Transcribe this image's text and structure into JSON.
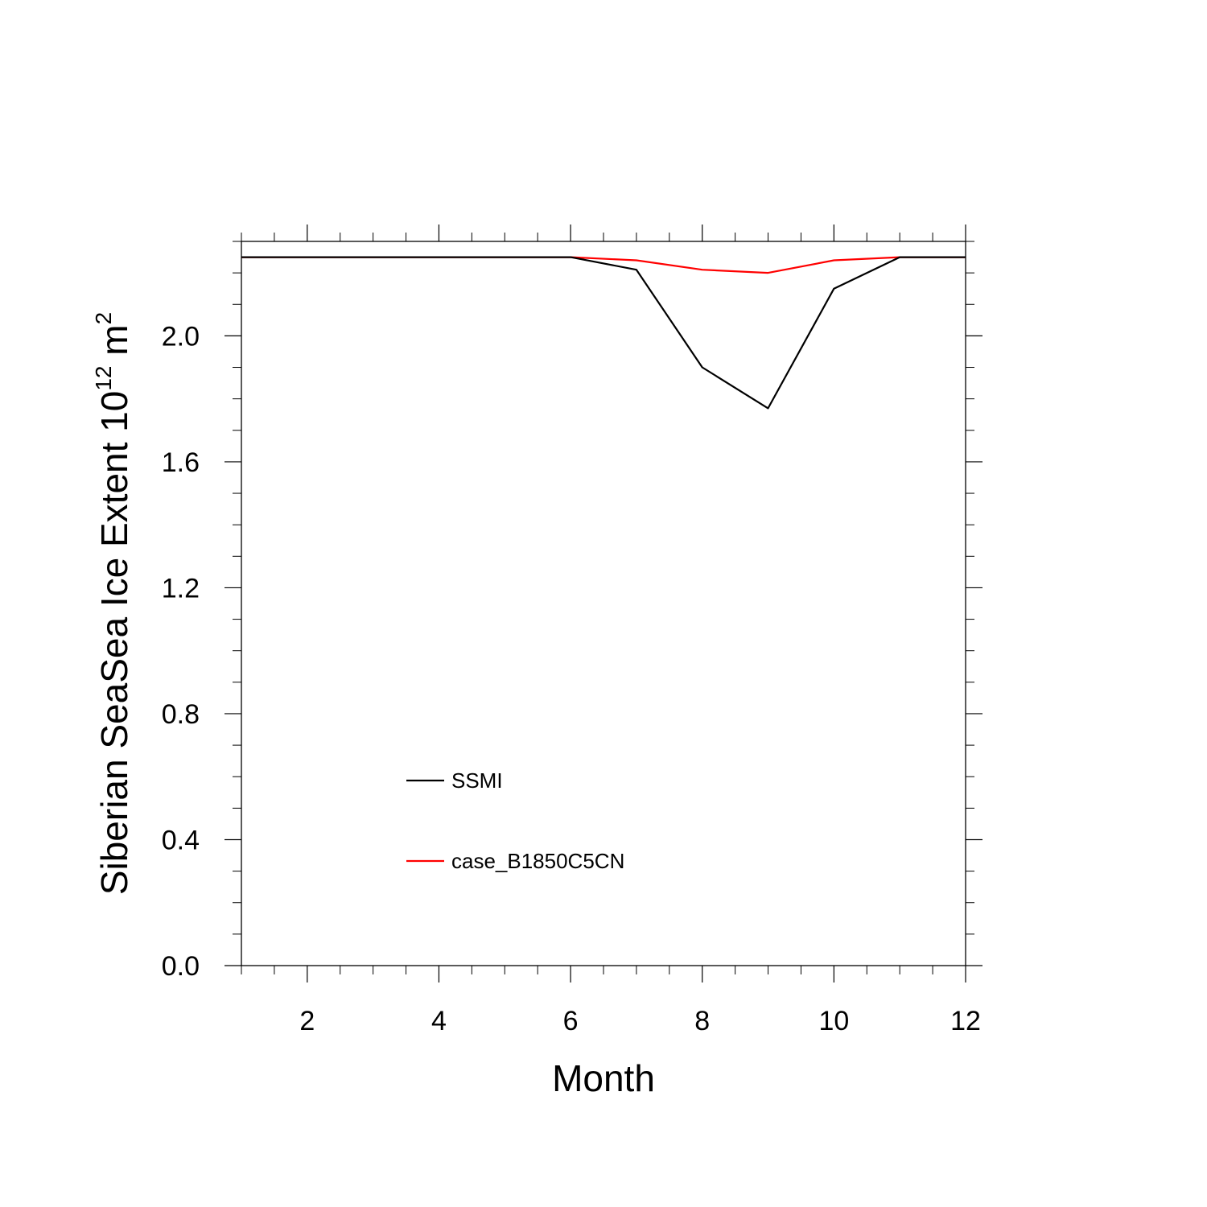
{
  "chart_data": {
    "type": "line",
    "title": "",
    "xlabel": "Month",
    "ylabel": {
      "main": "Siberian SeaSea Ice Extent 10",
      "exponent": "12",
      "unit": " m",
      "unit_exponent": "2"
    },
    "xlim": [
      1,
      12
    ],
    "ylim": [
      0,
      2.3
    ],
    "x_ticks": [
      2,
      4,
      6,
      8,
      10,
      12
    ],
    "y_ticks": [
      0.0,
      0.4,
      0.8,
      1.2,
      1.6,
      2.0
    ],
    "y_tick_labels": [
      "0.0",
      "0.4",
      "0.8",
      "1.2",
      "1.6",
      "2.0"
    ],
    "grid": false,
    "legend_position": "lower-left inside",
    "x": [
      1,
      2,
      3,
      4,
      5,
      6,
      7,
      8,
      9,
      10,
      11,
      12
    ],
    "series": [
      {
        "name": "SSMI",
        "color": "#000000",
        "values": [
          2.25,
          2.25,
          2.25,
          2.25,
          2.25,
          2.25,
          2.21,
          1.9,
          1.77,
          2.15,
          2.25,
          2.25
        ]
      },
      {
        "name": "case_B1850C5CN",
        "color": "#ff0000",
        "values": [
          2.25,
          2.25,
          2.25,
          2.25,
          2.25,
          2.25,
          2.24,
          2.21,
          2.2,
          2.24,
          2.25,
          2.25
        ]
      }
    ]
  }
}
